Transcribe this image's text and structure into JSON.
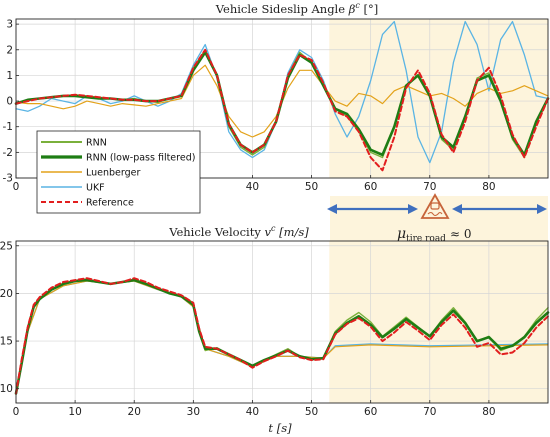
{
  "colors": {
    "rnn": "#7ab03b",
    "rnn_lp": "#1e7d14",
    "luenberger": "#e3a21a",
    "ukf": "#5ab4e4",
    "reference": "#e21e1e",
    "shade": "#fdf4dc",
    "arrow": "#3f6fbe",
    "icon": "#c7643a"
  },
  "chart_data": [
    {
      "type": "line",
      "title_text": "Vehicle Sideslip Angle",
      "title_symbol": "β",
      "title_sup": "c",
      "title_unit": " [°]",
      "xlim": [
        0,
        90
      ],
      "ylim": [
        -3,
        3.2
      ],
      "xticks": [
        "0",
        "10",
        "20",
        "30",
        "40",
        "50",
        "60",
        "70",
        "80"
      ],
      "yticks": [
        "-3",
        "-2",
        "-1",
        "0",
        "1",
        "2",
        "3"
      ],
      "grid": true,
      "legend_position": "lower-left",
      "shaded_region": [
        53,
        90
      ],
      "series": [
        {
          "name": "RNN",
          "x": [
            0,
            2,
            4,
            6,
            8,
            10,
            12,
            14,
            16,
            18,
            20,
            22,
            24,
            26,
            28,
            30,
            32,
            34,
            36,
            38,
            40,
            42,
            44,
            46,
            48,
            50,
            52,
            54,
            56,
            58,
            60,
            62,
            64,
            66,
            68,
            70,
            72,
            74,
            76,
            78,
            80,
            82,
            84,
            86,
            88,
            90
          ],
          "y": [
            -0.1,
            0.05,
            0.1,
            0.15,
            0.2,
            0.25,
            0.2,
            0.15,
            0.1,
            0.05,
            0.1,
            0.0,
            -0.05,
            0.1,
            0.2,
            1.3,
            2.0,
            1.0,
            -1.0,
            -1.8,
            -2.1,
            -1.8,
            -0.8,
            1.0,
            1.9,
            1.5,
            0.7,
            -0.3,
            -0.6,
            -1.2,
            -2.0,
            -2.2,
            -1.0,
            0.6,
            1.0,
            0.2,
            -1.5,
            -1.9,
            -0.6,
            0.9,
            1.1,
            0.0,
            -1.5,
            -2.2,
            -0.8,
            0.1
          ]
        },
        {
          "name": "RNN (low-pass filtered)",
          "x": [
            0,
            2,
            4,
            6,
            8,
            10,
            12,
            14,
            16,
            18,
            20,
            22,
            24,
            26,
            28,
            30,
            32,
            34,
            36,
            38,
            40,
            42,
            44,
            46,
            48,
            50,
            52,
            54,
            56,
            58,
            60,
            62,
            64,
            66,
            68,
            70,
            72,
            74,
            76,
            78,
            80,
            82,
            84,
            86,
            88,
            90
          ],
          "y": [
            -0.1,
            0.05,
            0.1,
            0.15,
            0.2,
            0.2,
            0.15,
            0.1,
            0.1,
            0.05,
            0.05,
            0.0,
            0.0,
            0.1,
            0.2,
            1.2,
            1.9,
            1.0,
            -0.9,
            -1.7,
            -2.0,
            -1.7,
            -0.8,
            0.9,
            1.8,
            1.5,
            0.6,
            -0.3,
            -0.5,
            -1.1,
            -1.9,
            -2.1,
            -1.0,
            0.6,
            1.0,
            0.2,
            -1.4,
            -1.8,
            -0.6,
            0.8,
            1.0,
            0.0,
            -1.4,
            -2.1,
            -0.8,
            0.1
          ]
        },
        {
          "name": "Luenberger",
          "x": [
            0,
            2,
            4,
            6,
            8,
            10,
            12,
            14,
            16,
            18,
            20,
            22,
            24,
            26,
            28,
            30,
            32,
            34,
            36,
            38,
            40,
            42,
            44,
            46,
            48,
            50,
            52,
            54,
            56,
            58,
            60,
            62,
            64,
            66,
            68,
            70,
            72,
            74,
            76,
            78,
            80,
            82,
            84,
            86,
            88,
            90
          ],
          "y": [
            -0.05,
            -0.1,
            -0.1,
            -0.2,
            -0.3,
            -0.2,
            0.0,
            -0.1,
            -0.2,
            -0.1,
            -0.15,
            -0.2,
            -0.1,
            0.0,
            0.1,
            1.0,
            1.4,
            0.6,
            -0.6,
            -1.2,
            -1.4,
            -1.2,
            -0.6,
            0.5,
            1.2,
            1.2,
            0.6,
            0.0,
            -0.2,
            0.3,
            0.2,
            -0.1,
            0.4,
            0.6,
            0.4,
            0.2,
            0.3,
            0.1,
            -0.2,
            0.3,
            0.5,
            0.3,
            0.4,
            0.6,
            0.4,
            0.2
          ]
        },
        {
          "name": "UKF",
          "x": [
            0,
            2,
            4,
            6,
            8,
            10,
            12,
            14,
            16,
            18,
            20,
            22,
            24,
            26,
            28,
            30,
            32,
            34,
            36,
            38,
            40,
            42,
            44,
            46,
            48,
            50,
            52,
            54,
            56,
            58,
            60,
            62,
            64,
            66,
            68,
            70,
            72,
            74,
            76,
            78,
            80,
            82,
            84,
            86,
            88,
            90
          ],
          "y": [
            -0.3,
            -0.4,
            -0.2,
            0.1,
            0.0,
            -0.1,
            0.2,
            0.1,
            -0.1,
            0.0,
            0.2,
            0.0,
            -0.2,
            0.0,
            0.3,
            1.4,
            2.2,
            0.9,
            -1.2,
            -1.9,
            -2.2,
            -1.9,
            -0.8,
            1.1,
            2.0,
            1.7,
            0.8,
            -0.5,
            -1.4,
            -0.6,
            0.8,
            2.6,
            3.1,
            1.2,
            -1.4,
            -2.4,
            -1.2,
            1.5,
            3.1,
            2.2,
            0.4,
            2.4,
            3.1,
            1.8,
            0.2,
            0.1
          ]
        },
        {
          "name": "Reference",
          "x": [
            0,
            2,
            4,
            6,
            8,
            10,
            12,
            14,
            16,
            18,
            20,
            22,
            24,
            26,
            28,
            30,
            32,
            34,
            36,
            38,
            40,
            42,
            44,
            46,
            48,
            50,
            52,
            54,
            56,
            58,
            60,
            62,
            64,
            66,
            68,
            70,
            72,
            74,
            76,
            78,
            80,
            82,
            84,
            86,
            88,
            90
          ],
          "y": [
            -0.1,
            0.0,
            0.1,
            0.15,
            0.2,
            0.25,
            0.2,
            0.15,
            0.1,
            0.05,
            0.05,
            0.0,
            0.0,
            0.1,
            0.2,
            1.3,
            2.0,
            1.0,
            -0.9,
            -1.7,
            -2.0,
            -1.7,
            -0.8,
            1.0,
            1.8,
            1.6,
            0.7,
            -0.4,
            -0.6,
            -1.2,
            -2.2,
            -2.7,
            -1.4,
            0.5,
            1.2,
            0.3,
            -1.3,
            -2.0,
            -0.8,
            0.8,
            1.3,
            0.2,
            -1.3,
            -2.2,
            -1.0,
            0.1
          ]
        }
      ]
    },
    {
      "type": "line",
      "title_text": "Vehicle Velocity",
      "title_symbol": "v",
      "title_sup": "c",
      "title_unit": " [m/s]",
      "xlabel_symbol": "t",
      "xlabel_unit": " [s]",
      "xlim": [
        0,
        90
      ],
      "ylim": [
        8.5,
        25.5
      ],
      "xticks": [
        "0",
        "10",
        "20",
        "30",
        "40",
        "50",
        "60",
        "70",
        "80"
      ],
      "yticks": [
        "10",
        "15",
        "20",
        "25"
      ],
      "grid": true,
      "shaded_region": [
        53,
        90
      ],
      "series": [
        {
          "name": "RNN",
          "x": [
            0,
            1,
            2,
            3,
            4,
            6,
            8,
            10,
            12,
            14,
            16,
            18,
            20,
            22,
            24,
            26,
            28,
            30,
            31,
            32,
            34,
            36,
            38,
            40,
            42,
            44,
            46,
            48,
            50,
            52,
            54,
            56,
            58,
            60,
            62,
            64,
            66,
            68,
            70,
            72,
            74,
            76,
            78,
            80,
            82,
            84,
            86,
            88,
            90
          ],
          "y": [
            9.5,
            13.0,
            16.5,
            18.8,
            19.5,
            20.5,
            21.0,
            21.3,
            21.5,
            21.2,
            21.0,
            21.2,
            21.5,
            21.0,
            20.5,
            20.0,
            19.8,
            19.0,
            16.0,
            14.0,
            14.3,
            13.6,
            13.0,
            12.3,
            13.0,
            13.6,
            14.2,
            13.4,
            13.1,
            13.2,
            16.0,
            17.2,
            18.0,
            17.0,
            15.5,
            16.5,
            17.5,
            16.5,
            15.5,
            17.2,
            18.5,
            17.0,
            15.0,
            15.5,
            14.0,
            14.5,
            15.5,
            17.2,
            18.5
          ]
        },
        {
          "name": "RNN (low-pass filtered)",
          "x": [
            0,
            1,
            2,
            3,
            4,
            6,
            8,
            10,
            12,
            14,
            16,
            18,
            20,
            22,
            24,
            26,
            28,
            30,
            31,
            32,
            34,
            36,
            38,
            40,
            42,
            44,
            46,
            48,
            50,
            52,
            54,
            56,
            58,
            60,
            62,
            64,
            66,
            68,
            70,
            72,
            74,
            76,
            78,
            80,
            82,
            84,
            86,
            88,
            90
          ],
          "y": [
            9.5,
            12.8,
            16.3,
            18.6,
            19.4,
            20.4,
            21.0,
            21.3,
            21.4,
            21.2,
            21.0,
            21.2,
            21.4,
            21.0,
            20.5,
            20.0,
            19.7,
            18.8,
            16.0,
            14.2,
            14.2,
            13.6,
            13.0,
            12.4,
            13.0,
            13.5,
            14.0,
            13.4,
            13.1,
            13.2,
            15.8,
            16.9,
            17.6,
            16.7,
            15.4,
            16.3,
            17.3,
            16.4,
            15.5,
            17.0,
            18.2,
            16.9,
            15.0,
            15.4,
            14.2,
            14.5,
            15.4,
            16.9,
            18.0
          ]
        },
        {
          "name": "Luenberger",
          "x": [
            0,
            2,
            4,
            8,
            12,
            16,
            20,
            24,
            28,
            30,
            32,
            36,
            40,
            44,
            48,
            52,
            54,
            60,
            70,
            80,
            90
          ],
          "y": [
            9.5,
            16.0,
            19.4,
            20.8,
            21.3,
            21.0,
            21.3,
            20.4,
            19.6,
            18.6,
            14.2,
            13.4,
            12.3,
            13.4,
            13.4,
            13.2,
            14.4,
            14.6,
            14.4,
            14.5,
            14.6
          ]
        },
        {
          "name": "UKF",
          "x": [
            0,
            2,
            4,
            8,
            12,
            16,
            20,
            24,
            28,
            30,
            32,
            36,
            40,
            44,
            48,
            52,
            54,
            60,
            70,
            80,
            90
          ],
          "y": [
            9.5,
            16.0,
            19.4,
            20.8,
            21.3,
            21.0,
            21.3,
            20.4,
            19.6,
            18.6,
            14.2,
            13.4,
            12.3,
            13.4,
            13.4,
            13.2,
            14.5,
            14.7,
            14.5,
            14.6,
            14.7
          ]
        },
        {
          "name": "Reference",
          "x": [
            0,
            1,
            2,
            3,
            4,
            6,
            8,
            10,
            12,
            14,
            16,
            18,
            20,
            22,
            24,
            26,
            28,
            30,
            31,
            32,
            34,
            36,
            38,
            40,
            42,
            44,
            46,
            48,
            50,
            52,
            54,
            56,
            58,
            60,
            62,
            64,
            66,
            68,
            70,
            72,
            74,
            76,
            78,
            80,
            82,
            84,
            86,
            88,
            90
          ],
          "y": [
            9.5,
            13.2,
            16.5,
            18.8,
            19.6,
            20.6,
            21.2,
            21.4,
            21.6,
            21.3,
            21.0,
            21.2,
            21.6,
            21.2,
            20.6,
            20.2,
            19.8,
            19.0,
            16.3,
            14.4,
            14.2,
            13.6,
            13.0,
            12.2,
            12.9,
            13.4,
            14.0,
            13.3,
            13.0,
            13.1,
            15.7,
            16.8,
            17.4,
            16.5,
            15.0,
            15.9,
            17.0,
            16.1,
            15.1,
            16.7,
            17.8,
            16.4,
            14.4,
            14.8,
            13.6,
            13.8,
            14.8,
            16.4,
            17.6
          ]
        }
      ]
    }
  ],
  "annotation": {
    "mu_symbol": "μ",
    "mu_sub": "tire road",
    "approx_text": "≈ 0"
  }
}
